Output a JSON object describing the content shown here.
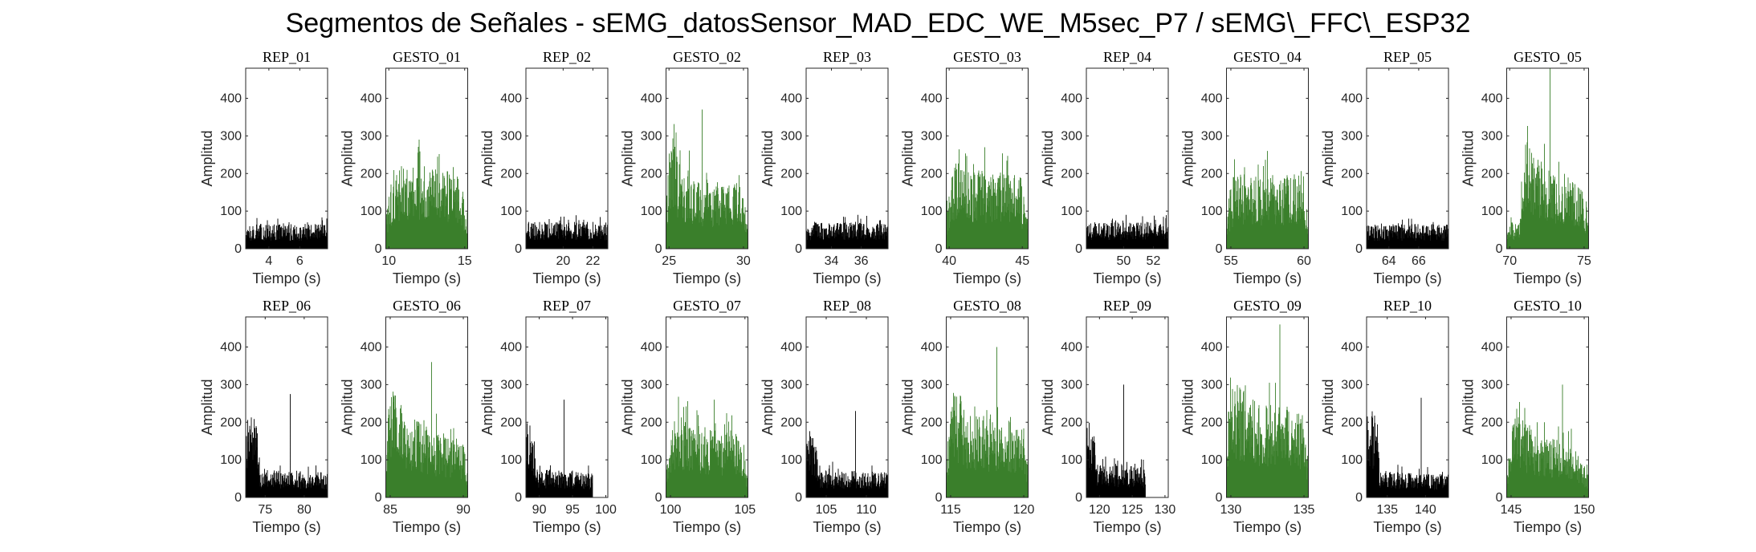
{
  "figure": {
    "title": "Segmentos de Señales - sEMG_datosSensor_MAD_EDC_WE_M5sec_P7 / sEMG\\_FFC\\_ESP32",
    "colors": {
      "rep": "#000000",
      "gesto": "#3a7f2b"
    },
    "layout": {
      "rows": 2,
      "cols": 10
    }
  },
  "chart_data": [
    {
      "type": "area",
      "title": "REP_01",
      "xlabel": "Tiempo (s)",
      "ylabel": "Amplitud",
      "xlim": [
        2.5,
        7.8
      ],
      "ylim": [
        0,
        480
      ],
      "xticks": [
        4,
        6
      ],
      "yticks": [
        0,
        100,
        200,
        300,
        400
      ],
      "series": [
        {
          "name": "REP_01",
          "t_start": 2.5,
          "t_end": 7.8,
          "profile": [
            [
              0,
              60
            ],
            [
              1,
              60
            ]
          ],
          "peak": 80,
          "color": "#000000"
        }
      ]
    },
    {
      "type": "area",
      "title": "GESTO_01",
      "xlabel": "Tiempo (s)",
      "ylabel": "Amplitud",
      "xlim": [
        9.8,
        15.2
      ],
      "ylim": [
        0,
        480
      ],
      "xticks": [
        10,
        15
      ],
      "yticks": [
        0,
        100,
        200,
        300,
        400
      ],
      "series": [
        {
          "name": "GESTO_01",
          "t_start": 9.8,
          "t_end": 15.2,
          "profile": [
            [
              0,
              80
            ],
            [
              0.1,
              200
            ],
            [
              0.5,
              200
            ],
            [
              0.9,
              180
            ],
            [
              1,
              80
            ]
          ],
          "peak": 290,
          "color": "#3a7f2b"
        }
      ]
    },
    {
      "type": "area",
      "title": "REP_02",
      "xlabel": "Tiempo (s)",
      "ylabel": "Amplitud",
      "xlim": [
        17.5,
        23.0
      ],
      "ylim": [
        0,
        480
      ],
      "xticks": [
        20,
        22
      ],
      "yticks": [
        0,
        100,
        200,
        300,
        400
      ],
      "series": [
        {
          "name": "REP_02",
          "t_start": 17.5,
          "t_end": 23.0,
          "profile": [
            [
              0,
              65
            ],
            [
              1,
              65
            ]
          ],
          "peak": 85,
          "color": "#000000"
        }
      ]
    },
    {
      "type": "area",
      "title": "GESTO_02",
      "xlabel": "Tiempo (s)",
      "ylabel": "Amplitud",
      "xlim": [
        24.8,
        30.3
      ],
      "ylim": [
        0,
        480
      ],
      "xticks": [
        25,
        30
      ],
      "yticks": [
        0,
        100,
        200,
        300,
        400
      ],
      "series": [
        {
          "name": "GESTO_02",
          "t_start": 24.8,
          "t_end": 30.3,
          "profile": [
            [
              0,
              100
            ],
            [
              0.05,
              280
            ],
            [
              0.2,
              200
            ],
            [
              0.6,
              150
            ],
            [
              0.9,
              160
            ],
            [
              1,
              70
            ]
          ],
          "peak": 370,
          "color": "#3a7f2b"
        }
      ]
    },
    {
      "type": "area",
      "title": "REP_03",
      "xlabel": "Tiempo (s)",
      "ylabel": "Amplitud",
      "xlim": [
        32.3,
        37.8
      ],
      "ylim": [
        0,
        480
      ],
      "xticks": [
        34,
        36
      ],
      "yticks": [
        0,
        100,
        200,
        300,
        400
      ],
      "series": [
        {
          "name": "REP_03",
          "t_start": 32.3,
          "t_end": 37.8,
          "profile": [
            [
              0,
              65
            ],
            [
              1,
              65
            ]
          ],
          "peak": 85,
          "color": "#000000"
        }
      ]
    },
    {
      "type": "area",
      "title": "GESTO_03",
      "xlabel": "Tiempo (s)",
      "ylabel": "Amplitud",
      "xlim": [
        39.8,
        45.4
      ],
      "ylim": [
        0,
        480
      ],
      "xticks": [
        40,
        45
      ],
      "yticks": [
        0,
        100,
        200,
        300,
        400
      ],
      "series": [
        {
          "name": "GESTO_03",
          "t_start": 39.8,
          "t_end": 45.4,
          "profile": [
            [
              0,
              80
            ],
            [
              0.1,
              220
            ],
            [
              0.5,
              190
            ],
            [
              0.9,
              180
            ],
            [
              1,
              70
            ]
          ],
          "peak": 270,
          "color": "#3a7f2b"
        }
      ]
    },
    {
      "type": "area",
      "title": "REP_04",
      "xlabel": "Tiempo (s)",
      "ylabel": "Amplitud",
      "xlim": [
        47.5,
        53.0
      ],
      "ylim": [
        0,
        480
      ],
      "xticks": [
        50,
        52
      ],
      "yticks": [
        0,
        100,
        200,
        300,
        400
      ],
      "series": [
        {
          "name": "REP_04",
          "t_start": 47.5,
          "t_end": 53.0,
          "profile": [
            [
              0,
              65
            ],
            [
              1,
              65
            ]
          ],
          "peak": 90,
          "color": "#000000"
        }
      ]
    },
    {
      "type": "area",
      "title": "GESTO_04",
      "xlabel": "Tiempo (s)",
      "ylabel": "Amplitud",
      "xlim": [
        54.7,
        60.3
      ],
      "ylim": [
        0,
        480
      ],
      "xticks": [
        55,
        60
      ],
      "yticks": [
        0,
        100,
        200,
        300,
        400
      ],
      "series": [
        {
          "name": "GESTO_04",
          "t_start": 54.7,
          "t_end": 60.3,
          "profile": [
            [
              0,
              90
            ],
            [
              0.1,
              190
            ],
            [
              0.5,
              170
            ],
            [
              0.9,
              180
            ],
            [
              1,
              80
            ]
          ],
          "peak": 260,
          "color": "#3a7f2b"
        }
      ]
    },
    {
      "type": "area",
      "title": "REP_05",
      "xlabel": "Tiempo (s)",
      "ylabel": "Amplitud",
      "xlim": [
        62.5,
        68.0
      ],
      "ylim": [
        0,
        480
      ],
      "xticks": [
        64,
        66
      ],
      "yticks": [
        0,
        100,
        200,
        300,
        400
      ],
      "series": [
        {
          "name": "REP_05",
          "t_start": 62.5,
          "t_end": 68.0,
          "profile": [
            [
              0,
              60
            ],
            [
              1,
              60
            ]
          ],
          "peak": 80,
          "color": "#000000"
        }
      ]
    },
    {
      "type": "area",
      "title": "GESTO_05",
      "xlabel": "Tiempo (s)",
      "ylabel": "Amplitud",
      "xlim": [
        69.8,
        75.3
      ],
      "ylim": [
        0,
        480
      ],
      "xticks": [
        70,
        75
      ],
      "yticks": [
        0,
        100,
        200,
        300,
        400
      ],
      "series": [
        {
          "name": "GESTO_05",
          "t_start": 69.8,
          "t_end": 75.3,
          "profile": [
            [
              0,
              60
            ],
            [
              0.15,
              70
            ],
            [
              0.25,
              260
            ],
            [
              0.5,
              190
            ],
            [
              0.9,
              170
            ],
            [
              1,
              60
            ]
          ],
          "peak": 480,
          "color": "#3a7f2b"
        }
      ]
    },
    {
      "type": "area",
      "title": "REP_06",
      "xlabel": "Tiempo (s)",
      "ylabel": "Amplitud",
      "xlim": [
        72.5,
        83.0
      ],
      "ylim": [
        0,
        480
      ],
      "xticks": [
        75,
        80
      ],
      "yticks": [
        0,
        100,
        200,
        300,
        400
      ],
      "series": [
        {
          "name": "REP_06",
          "t_start": 72.5,
          "t_end": 83.0,
          "profile": [
            [
              0,
              200
            ],
            [
              0.15,
              200
            ],
            [
              0.17,
              70
            ],
            [
              1,
              60
            ]
          ],
          "peak": 275,
          "color": "#000000"
        }
      ]
    },
    {
      "type": "area",
      "title": "GESTO_06",
      "xlabel": "Tiempo (s)",
      "ylabel": "Amplitud",
      "xlim": [
        84.7,
        90.3
      ],
      "ylim": [
        0,
        480
      ],
      "xticks": [
        85,
        90
      ],
      "yticks": [
        0,
        100,
        200,
        300,
        400
      ],
      "series": [
        {
          "name": "GESTO_06",
          "t_start": 84.7,
          "t_end": 90.3,
          "profile": [
            [
              0,
              120
            ],
            [
              0.05,
              280
            ],
            [
              0.3,
              200
            ],
            [
              0.7,
              150
            ],
            [
              0.95,
              140
            ],
            [
              1,
              60
            ]
          ],
          "peak": 360,
          "color": "#3a7f2b"
        }
      ]
    },
    {
      "type": "area",
      "title": "REP_07",
      "xlabel": "Tiempo (s)",
      "ylabel": "Amplitud",
      "xlim": [
        88.0,
        100.3
      ],
      "ylim": [
        0,
        480
      ],
      "xticks": [
        90,
        95,
        100
      ],
      "yticks": [
        0,
        100,
        200,
        300,
        400
      ],
      "series": [
        {
          "name": "REP_07",
          "t_start": 88.0,
          "t_end": 98.0,
          "profile": [
            [
              0,
              190
            ],
            [
              0.12,
              160
            ],
            [
              0.16,
              70
            ],
            [
              1,
              60
            ]
          ],
          "peak": 260,
          "color": "#000000"
        }
      ]
    },
    {
      "type": "area",
      "title": "GESTO_07",
      "xlabel": "Tiempo (s)",
      "ylabel": "Amplitud",
      "xlim": [
        99.7,
        105.2
      ],
      "ylim": [
        0,
        480
      ],
      "xticks": [
        100,
        105
      ],
      "yticks": [
        0,
        100,
        200,
        300,
        400
      ],
      "series": [
        {
          "name": "GESTO_07",
          "t_start": 99.7,
          "t_end": 105.2,
          "profile": [
            [
              0,
              70
            ],
            [
              0.1,
              200
            ],
            [
              0.5,
              170
            ],
            [
              0.9,
              160
            ],
            [
              1,
              60
            ]
          ],
          "peak": 260,
          "color": "#3a7f2b"
        }
      ]
    },
    {
      "type": "area",
      "title": "REP_08",
      "xlabel": "Tiempo (s)",
      "ylabel": "Amplitud",
      "xlim": [
        102.5,
        112.7
      ],
      "ylim": [
        0,
        480
      ],
      "xticks": [
        105,
        110
      ],
      "yticks": [
        0,
        100,
        200,
        300,
        400
      ],
      "series": [
        {
          "name": "REP_08",
          "t_start": 102.5,
          "t_end": 112.7,
          "profile": [
            [
              0,
              160
            ],
            [
              0.12,
              140
            ],
            [
              0.15,
              70
            ],
            [
              1,
              60
            ]
          ],
          "peak": 230,
          "color": "#000000"
        }
      ]
    },
    {
      "type": "area",
      "title": "GESTO_08",
      "xlabel": "Tiempo (s)",
      "ylabel": "Amplitud",
      "xlim": [
        114.7,
        120.3
      ],
      "ylim": [
        0,
        480
      ],
      "xticks": [
        115,
        120
      ],
      "yticks": [
        0,
        100,
        200,
        300,
        400
      ],
      "series": [
        {
          "name": "GESTO_08",
          "t_start": 114.7,
          "t_end": 120.3,
          "profile": [
            [
              0,
              100
            ],
            [
              0.08,
              280
            ],
            [
              0.3,
              200
            ],
            [
              0.7,
              180
            ],
            [
              0.95,
              170
            ],
            [
              1,
              60
            ]
          ],
          "peak": 400,
          "color": "#3a7f2b"
        }
      ]
    },
    {
      "type": "area",
      "title": "REP_09",
      "xlabel": "Tiempo (s)",
      "ylabel": "Amplitud",
      "xlim": [
        118.0,
        130.5
      ],
      "ylim": [
        0,
        480
      ],
      "xticks": [
        120,
        125,
        130
      ],
      "yticks": [
        0,
        100,
        200,
        300,
        400
      ],
      "series": [
        {
          "name": "REP_09",
          "t_start": 118.0,
          "t_end": 127.0,
          "profile": [
            [
              0,
              200
            ],
            [
              0.14,
              160
            ],
            [
              0.16,
              80
            ],
            [
              1,
              75
            ]
          ],
          "peak": 300,
          "color": "#000000"
        }
      ]
    },
    {
      "type": "area",
      "title": "GESTO_09",
      "xlabel": "Tiempo (s)",
      "ylabel": "Amplitud",
      "xlim": [
        129.7,
        135.3
      ],
      "ylim": [
        0,
        480
      ],
      "xticks": [
        130,
        135
      ],
      "yticks": [
        0,
        100,
        200,
        300,
        400
      ],
      "series": [
        {
          "name": "GESTO_09",
          "t_start": 129.7,
          "t_end": 135.3,
          "profile": [
            [
              0,
              150
            ],
            [
              0.05,
              300
            ],
            [
              0.4,
              230
            ],
            [
              0.8,
              220
            ],
            [
              0.95,
              200
            ],
            [
              1,
              60
            ]
          ],
          "peak": 460,
          "color": "#3a7f2b"
        }
      ]
    },
    {
      "type": "area",
      "title": "REP_10",
      "xlabel": "Tiempo (s)",
      "ylabel": "Amplitud",
      "xlim": [
        132.3,
        143.0
      ],
      "ylim": [
        0,
        480
      ],
      "xticks": [
        135,
        140
      ],
      "yticks": [
        0,
        100,
        200,
        300,
        400
      ],
      "series": [
        {
          "name": "REP_10",
          "t_start": 132.3,
          "t_end": 143.0,
          "profile": [
            [
              0,
              220
            ],
            [
              0.14,
              200
            ],
            [
              0.16,
              65
            ],
            [
              1,
              55
            ]
          ],
          "peak": 265,
          "color": "#000000"
        }
      ]
    },
    {
      "type": "area",
      "title": "GESTO_10",
      "xlabel": "Tiempo (s)",
      "ylabel": "Amplitud",
      "xlim": [
        144.7,
        150.3
      ],
      "ylim": [
        0,
        480
      ],
      "xticks": [
        145,
        150
      ],
      "yticks": [
        0,
        100,
        200,
        300,
        400
      ],
      "series": [
        {
          "name": "GESTO_10",
          "t_start": 144.7,
          "t_end": 150.3,
          "profile": [
            [
              0,
              80
            ],
            [
              0.1,
              220
            ],
            [
              0.4,
              150
            ],
            [
              0.8,
              130
            ],
            [
              1,
              60
            ]
          ],
          "peak": 300,
          "color": "#3a7f2b"
        }
      ]
    }
  ]
}
